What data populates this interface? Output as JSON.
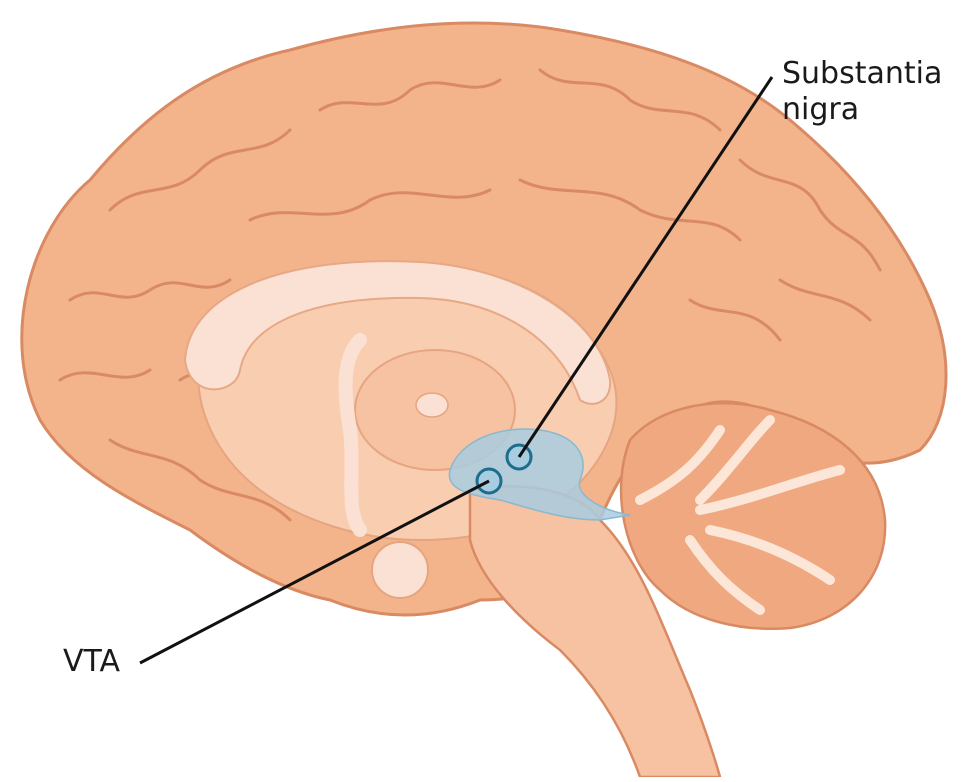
{
  "diagram": {
    "subject": "Sagittal section of the human brain",
    "labels": {
      "substantia_nigra_line1": "Substantia",
      "substantia_nigra_line2": "nigra",
      "vta": "VTA"
    },
    "colors": {
      "cortex_fill": "#f3b48c",
      "cortex_stroke": "#d98a63",
      "inner_fill": "#f8cdb0",
      "callosum_fill": "#fbe1d3",
      "midbrain_highlight": "#a8cde0",
      "marker_stroke": "#1f6d8c",
      "cerebellum_fill": "#f0a880",
      "cerebellum_core": "#fbe6d8",
      "leader_line": "#111111"
    }
  }
}
